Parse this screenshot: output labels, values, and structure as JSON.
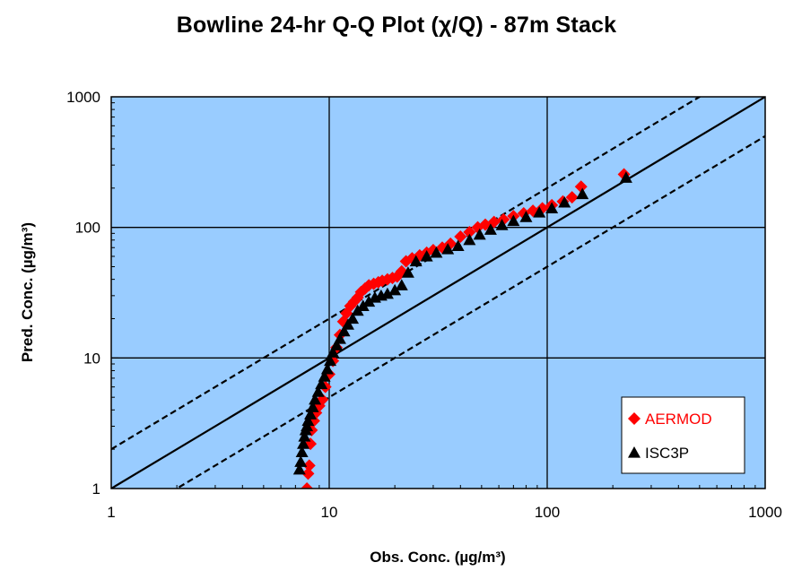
{
  "chart_data": {
    "type": "scatter",
    "title": "Bowline 24-hr Q-Q Plot (χ/Q) - 87m Stack",
    "xlabel": "Obs. Conc. (µg/m³)",
    "ylabel": "Pred. Conc. (µg/m³)",
    "xscale": "log",
    "yscale": "log",
    "xlim": [
      1,
      1000
    ],
    "ylim": [
      1,
      1000
    ],
    "xticks": [
      "1",
      "10",
      "100",
      "1000"
    ],
    "yticks": [
      "1",
      "10",
      "100",
      "1000"
    ],
    "grid": true,
    "plot_background": "#99ccff",
    "legend_position": "bottom-right",
    "reference_lines": [
      {
        "ratio": 1,
        "style": "solid"
      },
      {
        "ratio": 2,
        "style": "dashed"
      },
      {
        "ratio": 0.5,
        "style": "dashed"
      }
    ],
    "series": [
      {
        "name": "AERMOD",
        "color": "#ff0000",
        "marker": "diamond",
        "x": [
          7.9,
          8.0,
          8.1,
          8.2,
          8.3,
          8.5,
          8.7,
          9.0,
          9.3,
          9.6,
          10.0,
          10.4,
          10.8,
          11.2,
          11.6,
          12.0,
          12.5,
          13.0,
          13.5,
          14.0,
          14.6,
          15.2,
          16.0,
          16.8,
          17.5,
          18.5,
          19.5,
          20.5,
          21.5,
          22.5,
          24.0,
          26.0,
          28.0,
          30.0,
          33.0,
          36.0,
          40.0,
          44.0,
          48.0,
          52.0,
          57.0,
          63.0,
          70.0,
          78.0,
          86.0,
          95.0,
          105.0,
          118.0,
          130.0,
          143.0,
          225.0
        ],
        "y": [
          1.0,
          1.3,
          1.5,
          2.2,
          2.8,
          3.3,
          3.8,
          4.3,
          4.8,
          6.0,
          7.5,
          9.5,
          12.0,
          15.0,
          19.0,
          22.0,
          25.0,
          27.0,
          29.0,
          32.0,
          34.0,
          36.0,
          37.0,
          38.0,
          39.0,
          40.0,
          41.0,
          42.0,
          46.0,
          55.0,
          58.0,
          61.0,
          64.0,
          67.0,
          70.0,
          75.0,
          85.0,
          92.0,
          100.0,
          105.0,
          110.0,
          115.0,
          122.0,
          128.0,
          134.0,
          140.0,
          148.0,
          158.0,
          170.0,
          205.0,
          255.0
        ]
      },
      {
        "name": "ISC3P",
        "color": "#000000",
        "marker": "triangle",
        "x": [
          7.3,
          7.4,
          7.5,
          7.6,
          7.7,
          7.8,
          7.9,
          8.0,
          8.2,
          8.4,
          8.6,
          8.9,
          9.2,
          9.5,
          9.8,
          10.1,
          10.4,
          10.8,
          11.2,
          11.7,
          12.2,
          12.8,
          13.5,
          14.3,
          15.2,
          16.2,
          17.3,
          18.5,
          20.0,
          21.5,
          23.0,
          25.0,
          28.0,
          31.0,
          35.0,
          39.0,
          44.0,
          49.0,
          55.0,
          62.0,
          70.0,
          80.0,
          92.0,
          105.0,
          120.0,
          145.0,
          230.0
        ],
        "y": [
          1.4,
          1.6,
          1.9,
          2.2,
          2.5,
          2.8,
          3.0,
          3.3,
          3.7,
          4.2,
          4.8,
          5.5,
          6.3,
          7.2,
          8.2,
          9.5,
          11.0,
          12.5,
          14.0,
          16.0,
          18.0,
          20.0,
          23.0,
          25.0,
          27.0,
          29.0,
          30.0,
          31.0,
          33.0,
          36.0,
          45.0,
          55.0,
          60.0,
          64.0,
          68.0,
          72.0,
          80.0,
          88.0,
          96.0,
          104.0,
          112.0,
          120.0,
          130.0,
          140.0,
          155.0,
          180.0,
          240.0
        ]
      }
    ]
  }
}
